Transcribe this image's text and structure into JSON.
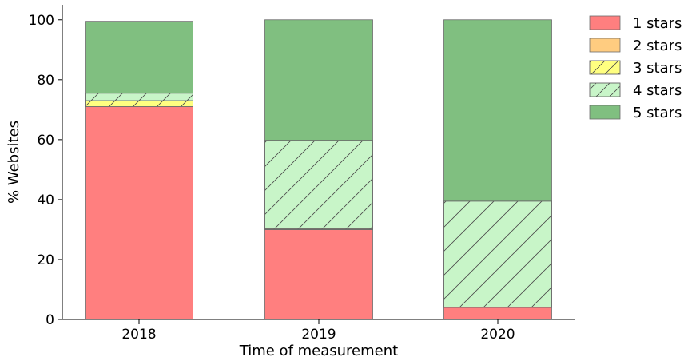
{
  "chart_data": {
    "type": "bar",
    "stacked": true,
    "categories": [
      "2018",
      "2019",
      "2020"
    ],
    "series": [
      {
        "name": "1 stars",
        "values": [
          71,
          30,
          4
        ],
        "color": "#ff7f7f",
        "hatch": false
      },
      {
        "name": "2 stars",
        "values": [
          0,
          0,
          0
        ],
        "color": "#ffcc80",
        "hatch": false
      },
      {
        "name": "3 stars",
        "values": [
          2,
          0.3,
          0
        ],
        "color": "#ffff80",
        "hatch": true
      },
      {
        "name": "4 stars",
        "values": [
          2.5,
          29.5,
          35.5
        ],
        "color": "#c8f5c8",
        "hatch": true
      },
      {
        "name": "5 stars",
        "values": [
          24,
          40.2,
          60.5
        ],
        "color": "#80bf80",
        "hatch": false
      }
    ],
    "title": "",
    "xlabel": "Time of measurement",
    "ylabel": "% Websites",
    "ylim": [
      0,
      105
    ],
    "yticks": [
      0,
      20,
      40,
      60,
      80,
      100
    ],
    "grid": false,
    "legend_position": "outside-right-top"
  }
}
